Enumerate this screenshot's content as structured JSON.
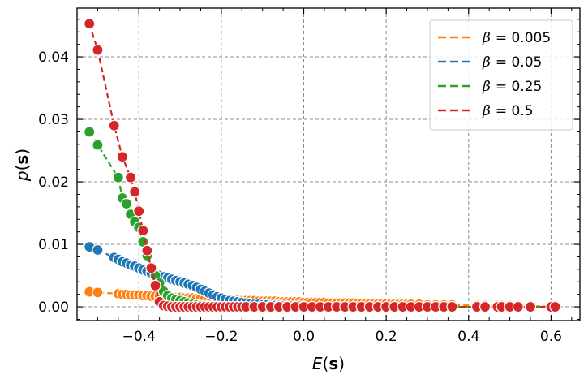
{
  "chart_data": {
    "type": "line",
    "title": "",
    "xlabel": {
      "italic": "E",
      "bold": "s"
    },
    "ylabel": {
      "italic": "p",
      "bold": "s"
    },
    "xlim": [
      -0.55,
      0.67
    ],
    "ylim": [
      -0.0022,
      0.0478
    ],
    "xticks": [
      -0.4,
      -0.2,
      0.0,
      0.2,
      0.4,
      0.6
    ],
    "xtick_labels": [
      "−0.4",
      "−0.2",
      "0.0",
      "0.2",
      "0.4",
      "0.6"
    ],
    "yticks": [
      0.0,
      0.01,
      0.02,
      0.03,
      0.04
    ],
    "ytick_labels": [
      "0.00",
      "0.01",
      "0.02",
      "0.03",
      "0.04"
    ],
    "grid": true,
    "legend_position": "top-right",
    "series": [
      {
        "name": "β = 0.005",
        "symbol": "β",
        "value_text": "= 0.005",
        "color": "#ff7f0e",
        "x": [
          -0.52,
          -0.5,
          -0.45,
          -0.44,
          -0.43,
          -0.42,
          -0.41,
          -0.4,
          -0.39,
          -0.38,
          -0.37,
          -0.36,
          -0.35,
          -0.34,
          -0.33,
          -0.32,
          -0.31,
          -0.3,
          -0.29,
          -0.28,
          -0.27,
          -0.26,
          -0.25,
          -0.24,
          -0.23,
          -0.22,
          -0.21,
          -0.2,
          -0.19,
          -0.18,
          -0.17,
          -0.16,
          -0.15,
          -0.14,
          -0.13,
          -0.12,
          -0.11,
          -0.1,
          -0.09,
          -0.08,
          -0.07,
          -0.06,
          -0.05,
          -0.04,
          -0.03,
          -0.02,
          -0.01,
          0.0,
          0.01,
          0.02,
          0.03,
          0.04,
          0.05,
          0.06,
          0.07,
          0.08,
          0.09,
          0.1,
          0.11,
          0.12,
          0.13,
          0.14,
          0.15,
          0.16,
          0.17,
          0.18,
          0.19,
          0.2,
          0.21,
          0.22,
          0.23,
          0.24,
          0.25,
          0.26,
          0.28,
          0.3,
          0.32,
          0.34,
          0.36,
          0.42,
          0.44,
          0.47,
          0.48,
          0.5,
          0.52,
          0.55,
          0.6,
          0.61
        ],
        "y": [
          0.0024,
          0.0023,
          0.0021,
          0.002,
          0.002,
          0.0019,
          0.0019,
          0.0019,
          0.0018,
          0.0018,
          0.0017,
          0.0017,
          0.0017,
          0.0016,
          0.0016,
          0.0015,
          0.0015,
          0.0015,
          0.0014,
          0.0014,
          0.0014,
          0.0013,
          0.0013,
          0.0013,
          0.0013,
          0.0012,
          0.0012,
          0.0012,
          0.0011,
          0.0011,
          0.0011,
          0.0011,
          0.001,
          0.001,
          0.001,
          0.001,
          0.0009,
          0.0009,
          0.0009,
          0.0009,
          0.0009,
          0.0008,
          0.0008,
          0.0008,
          0.0008,
          0.0008,
          0.0008,
          0.0007,
          0.0007,
          0.0007,
          0.0007,
          0.0007,
          0.0007,
          0.0006,
          0.0006,
          0.0006,
          0.0006,
          0.0006,
          0.0006,
          0.0006,
          0.0005,
          0.0005,
          0.0005,
          0.0005,
          0.0005,
          0.0005,
          0.0005,
          0.0005,
          0.0004,
          0.0004,
          0.0004,
          0.0004,
          0.0004,
          0.0004,
          0.0004,
          0.0003,
          0.0003,
          0.0003,
          0.0003,
          0.0002,
          0.0002,
          0.0002,
          0.0002,
          0.0002,
          0.0002,
          0.0001,
          0.0001,
          0.0001
        ]
      },
      {
        "name": "β = 0.05",
        "symbol": "β",
        "value_text": "= 0.05",
        "color": "#1f77b4",
        "x": [
          -0.52,
          -0.5,
          -0.46,
          -0.45,
          -0.44,
          -0.43,
          -0.42,
          -0.41,
          -0.4,
          -0.39,
          -0.38,
          -0.37,
          -0.36,
          -0.35,
          -0.34,
          -0.33,
          -0.32,
          -0.31,
          -0.3,
          -0.29,
          -0.28,
          -0.27,
          -0.26,
          -0.25,
          -0.24,
          -0.23,
          -0.22,
          -0.21,
          -0.2,
          -0.19,
          -0.18,
          -0.17,
          -0.16,
          -0.15,
          -0.14,
          -0.13,
          -0.12,
          -0.11,
          -0.1,
          -0.09,
          -0.08,
          -0.07,
          -0.06,
          -0.05,
          -0.04,
          -0.03,
          -0.02,
          -0.01,
          0.0,
          0.02,
          0.04,
          0.06,
          0.08,
          0.1,
          0.12,
          0.14,
          0.16,
          0.18,
          0.2,
          0.22,
          0.24,
          0.26,
          0.28,
          0.3,
          0.32,
          0.34,
          0.36,
          0.42,
          0.44,
          0.47,
          0.48,
          0.5,
          0.52,
          0.55,
          0.6,
          0.61
        ],
        "y": [
          0.0096,
          0.0091,
          0.0079,
          0.0076,
          0.0072,
          0.007,
          0.0067,
          0.0065,
          0.0062,
          0.0059,
          0.0057,
          0.0054,
          0.0052,
          0.005,
          0.0048,
          0.0046,
          0.0044,
          0.0042,
          0.004,
          0.0038,
          0.0036,
          0.0034,
          0.0031,
          0.0028,
          0.0025,
          0.0022,
          0.0019,
          0.0016,
          0.0014,
          0.0012,
          0.001,
          0.0009,
          0.0008,
          0.0007,
          0.0006,
          0.0005,
          0.0004,
          0.0004,
          0.0003,
          0.0003,
          0.0002,
          0.0002,
          0.0002,
          0.0001,
          0.0001,
          0.0001,
          0.0001,
          0.0001,
          0.0001,
          0.0,
          0.0,
          0.0,
          0.0,
          0.0,
          0.0,
          0.0,
          0.0,
          0.0,
          0.0,
          0.0,
          0.0,
          0.0,
          0.0,
          0.0,
          0.0,
          0.0,
          0.0,
          0.0,
          0.0,
          0.0,
          0.0,
          0.0,
          0.0,
          0.0,
          0.0,
          0.0
        ]
      },
      {
        "name": "β = 0.25",
        "symbol": "β",
        "value_text": "= 0.25",
        "color": "#2ca02c",
        "x": [
          -0.52,
          -0.5,
          -0.45,
          -0.44,
          -0.43,
          -0.42,
          -0.41,
          -0.4,
          -0.39,
          -0.38,
          -0.37,
          -0.36,
          -0.35,
          -0.34,
          -0.33,
          -0.32,
          -0.31,
          -0.3,
          -0.29,
          -0.28,
          -0.27,
          -0.26,
          -0.25,
          -0.24,
          -0.23,
          -0.22,
          -0.21,
          -0.2,
          -0.19,
          -0.18,
          -0.17,
          -0.16,
          -0.15,
          -0.14,
          -0.12,
          -0.1,
          -0.08,
          -0.06,
          -0.04,
          -0.02,
          0.0,
          0.02,
          0.04,
          0.06,
          0.08,
          0.1,
          0.12,
          0.14,
          0.16,
          0.18,
          0.2,
          0.22,
          0.24,
          0.26,
          0.28,
          0.3,
          0.32,
          0.34,
          0.36,
          0.42,
          0.44,
          0.47,
          0.48,
          0.5,
          0.52,
          0.55,
          0.6,
          0.61
        ],
        "y": [
          0.028,
          0.0259,
          0.0207,
          0.0174,
          0.0165,
          0.0148,
          0.0136,
          0.0127,
          0.0104,
          0.0082,
          0.0063,
          0.005,
          0.0038,
          0.0025,
          0.0018,
          0.0014,
          0.0012,
          0.001,
          0.0008,
          0.0006,
          0.0004,
          0.0003,
          0.0002,
          0.0002,
          0.0001,
          0.0001,
          0.0001,
          0.0,
          0.0,
          0.0,
          0.0,
          0.0,
          0.0,
          0.0,
          0.0,
          0.0,
          0.0,
          0.0,
          0.0,
          0.0,
          0.0,
          0.0,
          0.0,
          0.0,
          0.0,
          0.0,
          0.0,
          0.0,
          0.0,
          0.0,
          0.0,
          0.0,
          0.0,
          0.0,
          0.0,
          0.0,
          0.0,
          0.0,
          0.0,
          0.0,
          0.0,
          0.0,
          0.0,
          0.0,
          0.0,
          0.0,
          0.0,
          0.0
        ]
      },
      {
        "name": "β = 0.5",
        "symbol": "β",
        "value_text": "= 0.5",
        "color": "#d62728",
        "x": [
          -0.52,
          -0.5,
          -0.46,
          -0.44,
          -0.42,
          -0.41,
          -0.4,
          -0.39,
          -0.38,
          -0.37,
          -0.36,
          -0.35,
          -0.34,
          -0.33,
          -0.32,
          -0.31,
          -0.3,
          -0.29,
          -0.28,
          -0.27,
          -0.26,
          -0.25,
          -0.24,
          -0.23,
          -0.22,
          -0.21,
          -0.2,
          -0.19,
          -0.18,
          -0.17,
          -0.16,
          -0.15,
          -0.14,
          -0.12,
          -0.1,
          -0.08,
          -0.06,
          -0.04,
          -0.02,
          0.0,
          0.02,
          0.04,
          0.06,
          0.08,
          0.1,
          0.12,
          0.14,
          0.16,
          0.18,
          0.2,
          0.22,
          0.24,
          0.26,
          0.28,
          0.3,
          0.32,
          0.34,
          0.36,
          0.42,
          0.44,
          0.47,
          0.48,
          0.5,
          0.52,
          0.55,
          0.6,
          0.61
        ],
        "y": [
          0.0453,
          0.0411,
          0.029,
          0.024,
          0.0207,
          0.0184,
          0.0153,
          0.0122,
          0.009,
          0.0062,
          0.0034,
          0.0008,
          0.0002,
          0.0001,
          0.0,
          0.0,
          0.0,
          0.0,
          0.0,
          0.0,
          0.0,
          0.0,
          0.0,
          0.0,
          0.0,
          0.0,
          0.0,
          0.0,
          0.0,
          0.0,
          0.0,
          0.0,
          0.0,
          0.0,
          0.0,
          0.0,
          0.0,
          0.0,
          0.0,
          0.0,
          0.0,
          0.0,
          0.0,
          0.0,
          0.0,
          0.0,
          0.0,
          0.0,
          0.0,
          0.0,
          0.0,
          0.0,
          0.0,
          0.0,
          0.0,
          0.0,
          0.0,
          0.0,
          0.0,
          0.0,
          0.0,
          0.0,
          0.0,
          0.0,
          0.0,
          0.0,
          0.0
        ]
      }
    ]
  }
}
